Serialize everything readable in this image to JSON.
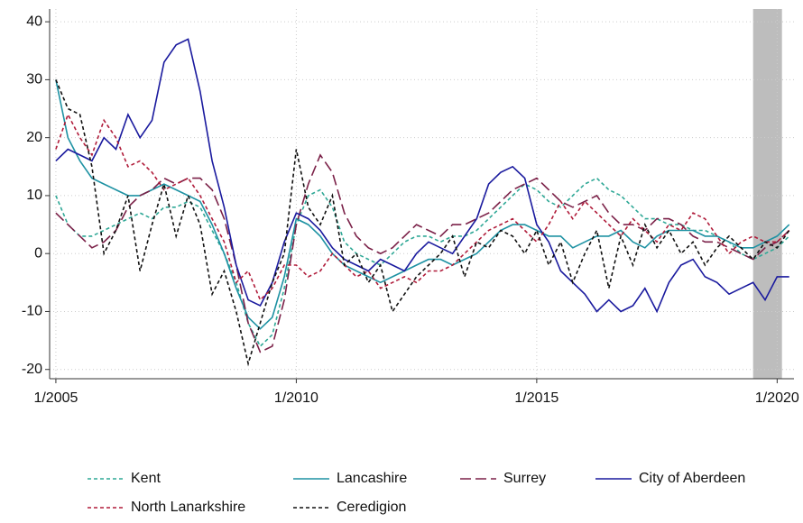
{
  "chart_data": {
    "type": "line",
    "x": [
      2005,
      2005.25,
      2005.5,
      2005.75,
      2006,
      2006.25,
      2006.5,
      2006.75,
      2007,
      2007.25,
      2007.5,
      2007.75,
      2008,
      2008.25,
      2008.5,
      2008.75,
      2009,
      2009.25,
      2009.5,
      2009.75,
      2010,
      2010.25,
      2010.5,
      2010.75,
      2011,
      2011.25,
      2011.5,
      2011.75,
      2012,
      2012.25,
      2012.5,
      2012.75,
      2013,
      2013.25,
      2013.5,
      2013.75,
      2014,
      2014.25,
      2014.5,
      2014.75,
      2015,
      2015.25,
      2015.5,
      2015.75,
      2016,
      2016.25,
      2016.5,
      2016.75,
      2017,
      2017.25,
      2017.5,
      2017.75,
      2018,
      2018.25,
      2018.5,
      2018.75,
      2019,
      2019.25,
      2019.5,
      2019.75,
      2020,
      2020.25
    ],
    "series": [
      {
        "name": "Kent",
        "color": "#2fa896",
        "dash": "short",
        "values": [
          10,
          5,
          3,
          3,
          4,
          5,
          6,
          7,
          6,
          8,
          8,
          9,
          8,
          4,
          0,
          -5,
          -12,
          -16,
          -14,
          -6,
          5,
          10,
          11,
          8,
          2,
          0,
          -1,
          -2,
          0,
          2,
          3,
          3,
          2,
          3,
          3,
          4,
          6,
          8,
          10,
          12,
          11,
          9,
          8,
          10,
          12,
          13,
          11,
          10,
          8,
          6,
          6,
          5,
          5,
          4,
          4,
          3,
          2,
          0,
          -1,
          0,
          1,
          3
        ]
      },
      {
        "name": "Lancashire",
        "color": "#1e92a3",
        "dash": "solid",
        "values": [
          30,
          20,
          16,
          13,
          12,
          11,
          10,
          10,
          11,
          12,
          11,
          10,
          9,
          5,
          0,
          -6,
          -11,
          -13,
          -11,
          -4,
          6,
          5,
          3,
          0,
          -2,
          -3,
          -4,
          -5,
          -4,
          -3,
          -2,
          -1,
          -1,
          -2,
          -1,
          0,
          2,
          4,
          5,
          5,
          4,
          3,
          3,
          1,
          2,
          3,
          3,
          4,
          2,
          1,
          3,
          4,
          4,
          4,
          3,
          3,
          2,
          1,
          1,
          2,
          3,
          5
        ]
      },
      {
        "name": "Surrey",
        "color": "#7b2148",
        "dash": "long",
        "values": [
          7,
          5,
          3,
          1,
          2,
          4,
          8,
          10,
          11,
          13,
          12,
          13,
          13,
          11,
          6,
          -2,
          -12,
          -17,
          -16,
          -8,
          5,
          12,
          17,
          14,
          7,
          3,
          1,
          0,
          1,
          3,
          5,
          4,
          3,
          5,
          5,
          6,
          7,
          9,
          11,
          12,
          13,
          11,
          9,
          8,
          9,
          10,
          7,
          5,
          5,
          4,
          6,
          6,
          5,
          3,
          2,
          2,
          1,
          0,
          -1,
          1,
          2,
          4
        ]
      },
      {
        "name": "City of Aberdeen",
        "color": "#1a1a9e",
        "dash": "solid",
        "values": [
          16,
          18,
          17,
          16,
          20,
          18,
          24,
          20,
          23,
          33,
          36,
          37,
          28,
          16,
          8,
          -2,
          -8,
          -9,
          -5,
          2,
          7,
          6,
          4,
          1,
          -1,
          -2,
          -3,
          -1,
          -2,
          -3,
          0,
          2,
          1,
          0,
          3,
          6,
          12,
          14,
          15,
          13,
          5,
          2,
          -3,
          -5,
          -7,
          -10,
          -8,
          -10,
          -9,
          -6,
          -10,
          -5,
          -2,
          -1,
          -4,
          -5,
          -7,
          -6,
          -5,
          -8,
          -4,
          -4
        ]
      },
      {
        "name": "North Lanarkshire",
        "color": "#b01c3a",
        "dash": "short",
        "values": [
          18,
          24,
          20,
          17,
          23,
          20,
          15,
          16,
          14,
          11,
          12,
          13,
          10,
          6,
          2,
          -5,
          -3,
          -8,
          -6,
          -2,
          -2,
          -4,
          -3,
          0,
          -2,
          -4,
          -3,
          -6,
          -5,
          -4,
          -5,
          -3,
          -3,
          -2,
          0,
          2,
          4,
          5,
          6,
          4,
          2,
          5,
          9,
          6,
          9,
          7,
          5,
          3,
          6,
          4,
          2,
          5,
          4,
          7,
          6,
          3,
          0,
          2,
          3,
          2,
          2,
          4
        ]
      },
      {
        "name": "Ceredigion",
        "color": "#111111",
        "dash": "short",
        "values": [
          30,
          25,
          24,
          15,
          0,
          4,
          10,
          -3,
          5,
          12,
          3,
          10,
          5,
          -7,
          -3,
          -10,
          -19,
          -12,
          -5,
          0,
          18,
          8,
          5,
          10,
          -2,
          0,
          -5,
          -2,
          -10,
          -7,
          -4,
          -2,
          0,
          3,
          -4,
          2,
          1,
          4,
          3,
          0,
          4,
          -2,
          2,
          -5,
          0,
          4,
          -6,
          3,
          -2,
          5,
          1,
          4,
          0,
          2,
          -2,
          1,
          3,
          1,
          -1,
          2,
          1,
          4
        ]
      }
    ],
    "shaded_region": [
      2019.5,
      2020.1
    ],
    "xlim": [
      2004.87,
      2020.35
    ],
    "xticks": [
      {
        "value": 2005,
        "label": "1/2005"
      },
      {
        "value": 2010,
        "label": "1/2010"
      },
      {
        "value": 2015,
        "label": "1/2015"
      },
      {
        "value": 2020,
        "label": "1/2020"
      }
    ],
    "ylim": [
      -21.6,
      42.2
    ],
    "yticks": [
      -20,
      -10,
      0,
      10,
      20,
      30,
      40
    ],
    "grid": true
  }
}
